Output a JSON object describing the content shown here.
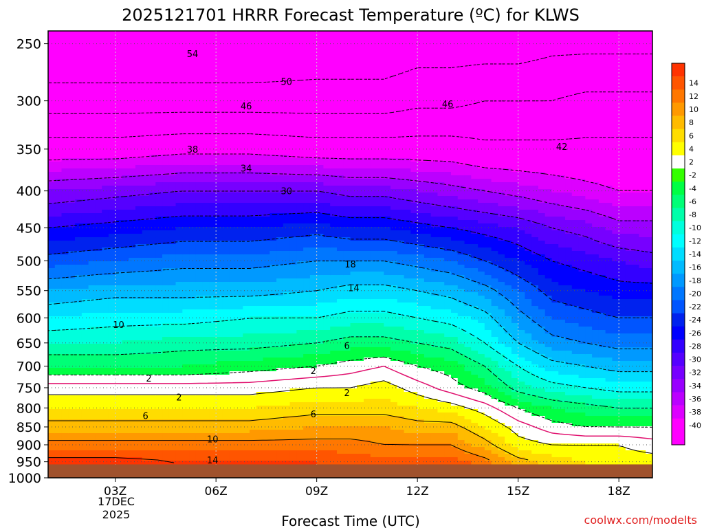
{
  "chart_data": {
    "type": "heatmap",
    "title": "2025121701 HRRR Forecast Temperature (ºC) for KLWS",
    "xlabel": "Forecast Time (UTC)",
    "ylabel": "",
    "credit": "coolwx.com/modelts",
    "x_unit": "hours from 01Z",
    "x_range": [
      0,
      18
    ],
    "y_range_hPa": [
      240,
      1000
    ],
    "y_scale": "log",
    "x_ticks": [
      {
        "hour": 2,
        "label": "03Z"
      },
      {
        "hour": 5,
        "label": "06Z"
      },
      {
        "hour": 8,
        "label": "09Z"
      },
      {
        "hour": 11,
        "label": "12Z"
      },
      {
        "hour": 14,
        "label": "15Z"
      },
      {
        "hour": 17,
        "label": "18Z"
      }
    ],
    "date_label": [
      "17DEC",
      "2025"
    ],
    "y_ticks": [
      250,
      300,
      350,
      400,
      450,
      500,
      550,
      600,
      650,
      700,
      750,
      800,
      850,
      900,
      950,
      1000
    ],
    "hours": [
      0,
      2,
      4,
      6,
      8,
      9,
      10,
      11,
      12,
      13,
      14,
      15,
      16,
      17,
      18
    ],
    "pressure_levels": [
      250,
      300,
      350,
      400,
      450,
      500,
      550,
      600,
      650,
      700,
      750,
      800,
      850,
      900,
      950
    ],
    "surface_pressure": 958,
    "temperature_c": [
      [
        -54,
        -54,
        -54,
        -54,
        -53,
        -53,
        -53,
        -52,
        -52,
        -52,
        -52,
        -51,
        -51,
        -51,
        -51
      ],
      [
        -48,
        -48,
        -48,
        -48,
        -48,
        -48,
        -48,
        -47,
        -47,
        -46,
        -46,
        -46,
        -45,
        -45,
        -45
      ],
      [
        -40,
        -40,
        -39,
        -39,
        -40,
        -40,
        -40,
        -40,
        -40,
        -41,
        -41,
        -41,
        -41,
        -41,
        -41
      ],
      [
        -32,
        -31,
        -30,
        -30,
        -30,
        -31,
        -31,
        -32,
        -33,
        -34,
        -35,
        -36,
        -37,
        -38,
        -38
      ],
      [
        -26,
        -25,
        -24,
        -24,
        -23,
        -24,
        -24,
        -25,
        -26,
        -27,
        -28,
        -30,
        -31,
        -33,
        -33
      ],
      [
        -21,
        -20,
        -19,
        -19,
        -18,
        -18,
        -18,
        -19,
        -20,
        -22,
        -24,
        -26,
        -27,
        -28,
        -29
      ],
      [
        -16,
        -15,
        -15,
        -15,
        -14,
        -13,
        -13,
        -14,
        -15,
        -17,
        -20,
        -23,
        -24,
        -25,
        -25
      ],
      [
        -12,
        -11,
        -11,
        -10,
        -10,
        -9,
        -9,
        -10,
        -11,
        -13,
        -17,
        -20,
        -21,
        -22,
        -22
      ],
      [
        -8,
        -8,
        -7,
        -7,
        -6,
        -5,
        -5,
        -6,
        -7,
        -10,
        -14,
        -17,
        -18,
        -19,
        -19
      ],
      [
        -4,
        -4,
        -4,
        -3,
        -2,
        -1,
        0,
        -2,
        -3,
        -6,
        -10,
        -13,
        -14,
        -15,
        -15
      ],
      [
        1,
        1,
        1,
        1,
        2,
        2,
        3,
        1,
        -1,
        -3,
        -7,
        -9,
        -10,
        -11,
        -11
      ],
      [
        4,
        4,
        4,
        4,
        5,
        5,
        5,
        4,
        3,
        1,
        -2,
        -4,
        -5,
        -6,
        -6
      ],
      [
        7,
        7,
        7,
        7,
        8,
        8,
        8,
        7,
        7,
        4,
        1,
        -1,
        -2,
        -2,
        -2
      ],
      [
        11,
        11,
        11,
        11,
        11,
        11,
        10,
        10,
        10,
        7,
        3,
        2,
        2,
        2,
        1
      ],
      [
        15,
        15,
        14,
        14,
        14,
        13,
        13,
        13,
        13,
        11,
        7,
        5,
        4,
        3,
        3
      ]
    ],
    "contour_labels": [
      {
        "text": "54",
        "hour": 4.3,
        "p": 258
      },
      {
        "text": "50",
        "hour": 7.1,
        "p": 282
      },
      {
        "text": "46",
        "hour": 5.9,
        "p": 305
      },
      {
        "text": "46",
        "hour": 11.9,
        "p": 303
      },
      {
        "text": "42",
        "hour": 15.3,
        "p": 347
      },
      {
        "text": "38",
        "hour": 4.3,
        "p": 350
      },
      {
        "text": "34",
        "hour": 5.9,
        "p": 372
      },
      {
        "text": "30",
        "hour": 7.1,
        "p": 400
      },
      {
        "text": "18",
        "hour": 9.0,
        "p": 505
      },
      {
        "text": "14",
        "hour": 9.1,
        "p": 545
      },
      {
        "text": "10",
        "hour": 2.1,
        "p": 613
      },
      {
        "text": "6",
        "hour": 8.9,
        "p": 655
      },
      {
        "text": "2",
        "hour": 3.0,
        "p": 727
      },
      {
        "text": "2",
        "hour": 7.9,
        "p": 710
      },
      {
        "text": "2",
        "hour": 3.9,
        "p": 773
      },
      {
        "text": "2",
        "hour": 8.9,
        "p": 762
      },
      {
        "text": "6",
        "hour": 2.9,
        "p": 820
      },
      {
        "text": "6",
        "hour": 7.9,
        "p": 815
      },
      {
        "text": "10",
        "hour": 4.9,
        "p": 883
      },
      {
        "text": "14",
        "hour": 4.9,
        "p": 945
      }
    ],
    "colorbar": {
      "bins": [
        {
          "label": "",
          "color": "#ff00ff"
        },
        {
          "label": "-40",
          "color": "#ff00ff"
        },
        {
          "label": "-38",
          "color": "#dd00ff"
        },
        {
          "label": "-36",
          "color": "#bb00ff"
        },
        {
          "label": "-34",
          "color": "#9900ff"
        },
        {
          "label": "-32",
          "color": "#7700ff"
        },
        {
          "label": "-30",
          "color": "#5500ff"
        },
        {
          "label": "-28",
          "color": "#3300ff"
        },
        {
          "label": "-26",
          "color": "#0000ff"
        },
        {
          "label": "-24",
          "color": "#0022ee"
        },
        {
          "label": "-22",
          "color": "#0055ff"
        },
        {
          "label": "-20",
          "color": "#0077ff"
        },
        {
          "label": "-18",
          "color": "#0099ff"
        },
        {
          "label": "-16",
          "color": "#00bbff"
        },
        {
          "label": "-14",
          "color": "#00ddff"
        },
        {
          "label": "-12",
          "color": "#00ffff"
        },
        {
          "label": "-10",
          "color": "#00ffdd"
        },
        {
          "label": "-8",
          "color": "#00ffaa"
        },
        {
          "label": "-6",
          "color": "#00ff77"
        },
        {
          "label": "-4",
          "color": "#00ff44"
        },
        {
          "label": "-2",
          "color": "#33ff00"
        },
        {
          "label": "2",
          "color": "#ffffff"
        },
        {
          "label": "4",
          "color": "#ffff00"
        },
        {
          "label": "6",
          "color": "#ffdd00"
        },
        {
          "label": "8",
          "color": "#ffbb00"
        },
        {
          "label": "10",
          "color": "#ff9900"
        },
        {
          "label": "12",
          "color": "#ff7700"
        },
        {
          "label": "14",
          "color": "#ff5500"
        },
        {
          "label": "",
          "color": "#ff3300"
        }
      ]
    },
    "ground_color": "#a0522d",
    "freezing_line_color": "#e0106e"
  }
}
